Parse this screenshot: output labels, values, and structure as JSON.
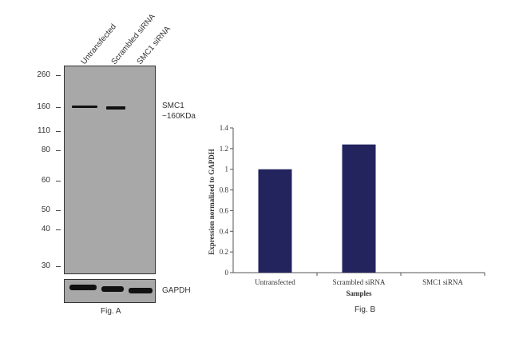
{
  "fig_a": {
    "lanes": [
      "Untransfected",
      "Scrambled siRNA",
      "SMC1 siRNA"
    ],
    "markers": [
      "260",
      "160",
      "110",
      "80",
      "60",
      "50",
      "40",
      "30"
    ],
    "target_label": "SMC1",
    "target_size": "~160KDa",
    "loading_label": "GAPDH",
    "caption": "Fig. A"
  },
  "chart_data": {
    "type": "bar",
    "categories": [
      "Untransfected",
      "Scrambled siRNA",
      "SMC1 siRNA"
    ],
    "values": [
      1.0,
      1.24,
      0.0
    ],
    "title": "",
    "xlabel": "Samples",
    "ylabel": "Expression normalized to GAPDH",
    "ylim": [
      0,
      1.4
    ],
    "yticks": [
      "0",
      "0.2",
      "0.4",
      "0.6",
      "0.8",
      "1",
      "1.2",
      "1.4"
    ],
    "bar_color": "#23235e",
    "grid": false
  },
  "fig_b": {
    "caption": "Fig. B"
  }
}
